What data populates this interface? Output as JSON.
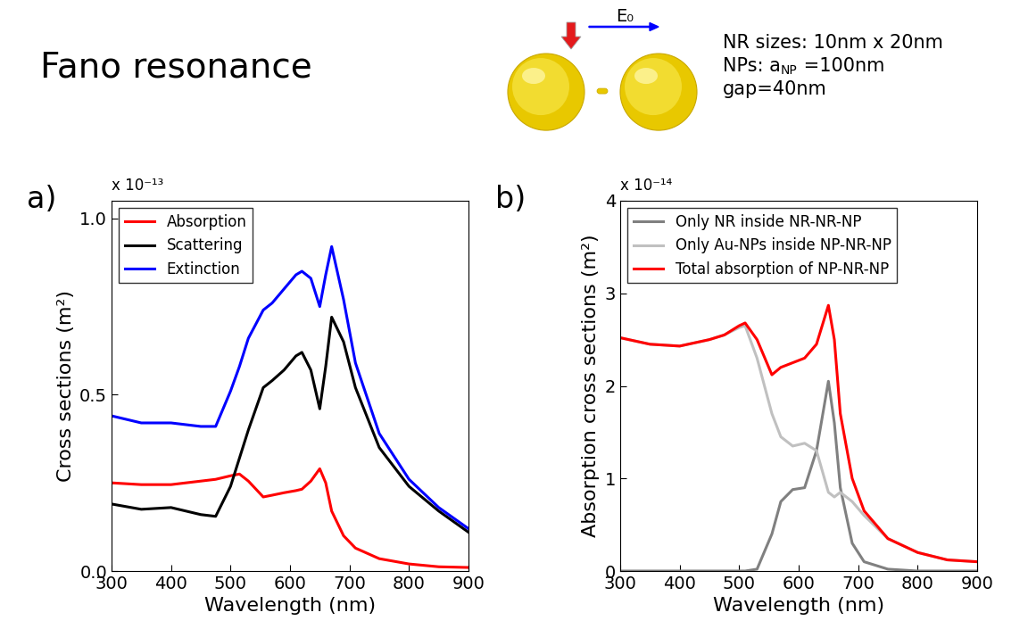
{
  "header": {
    "title": "Fano resonance",
    "field_label": "E₀",
    "notes": [
      [
        "NR sizes: 10nm x 20nm"
      ],
      [
        "NPs: a",
        {
          "sub": "NP"
        },
        " =100nm"
      ],
      [
        "gap=40nm"
      ]
    ]
  },
  "chart_data": [
    {
      "type": "line",
      "label": "a)",
      "y_multiplier": "x 10⁻¹³",
      "x_label": "Wavelength (nm)",
      "y_label": "Cross sections (m²)",
      "x": [
        300,
        350,
        400,
        450,
        475,
        500,
        515,
        530,
        555,
        570,
        590,
        610,
        620,
        635,
        650,
        660,
        670,
        690,
        710,
        750,
        800,
        850,
        900
      ],
      "series": [
        {
          "name": "Absorption",
          "color": "#ff0000",
          "values": [
            0.25,
            0.245,
            0.245,
            0.255,
            0.26,
            0.27,
            0.275,
            0.255,
            0.21,
            0.215,
            0.222,
            0.228,
            0.232,
            0.255,
            0.29,
            0.25,
            0.17,
            0.1,
            0.065,
            0.035,
            0.02,
            0.012,
            0.01
          ]
        },
        {
          "name": "Scattering",
          "color": "#000000",
          "values": [
            0.19,
            0.175,
            0.18,
            0.16,
            0.155,
            0.24,
            0.32,
            0.4,
            0.52,
            0.54,
            0.57,
            0.61,
            0.62,
            0.57,
            0.46,
            0.58,
            0.72,
            0.65,
            0.52,
            0.35,
            0.24,
            0.17,
            0.11
          ]
        },
        {
          "name": "Extinction",
          "color": "#0000ff",
          "values": [
            0.44,
            0.42,
            0.42,
            0.41,
            0.41,
            0.51,
            0.58,
            0.66,
            0.74,
            0.76,
            0.8,
            0.84,
            0.85,
            0.83,
            0.75,
            0.84,
            0.92,
            0.77,
            0.59,
            0.39,
            0.26,
            0.18,
            0.12
          ]
        }
      ],
      "xlim": [
        300,
        900
      ],
      "xticks": [
        300,
        400,
        500,
        600,
        700,
        800,
        900
      ],
      "ylim": [
        0,
        1.05
      ],
      "yticks": [
        {
          "value": 0,
          "label": "0.0"
        },
        {
          "value": 0.5,
          "label": "0.5"
        },
        {
          "value": 1,
          "label": "1.0"
        }
      ],
      "legend": "upper left"
    },
    {
      "type": "line",
      "label": "b)",
      "y_multiplier": "x 10⁻¹⁴",
      "x_label": "Wavelength (nm)",
      "y_label": "Absorption cross sections (m²)",
      "x": [
        300,
        350,
        400,
        450,
        475,
        500,
        510,
        530,
        555,
        570,
        590,
        610,
        630,
        650,
        660,
        670,
        690,
        710,
        750,
        800,
        850,
        900
      ],
      "series": [
        {
          "name": "Only NR inside NR-NR-NP",
          "color": "#808080",
          "values": [
            0,
            0,
            0,
            0,
            0,
            0,
            0,
            0.02,
            0.4,
            0.75,
            0.88,
            0.9,
            1.3,
            2.05,
            1.6,
            0.9,
            0.3,
            0.1,
            0.02,
            0,
            0,
            0
          ]
        },
        {
          "name": "Only Au-NPs inside NP-NR-NP",
          "color": "#c0c0c0",
          "values": [
            2.52,
            2.45,
            2.43,
            2.5,
            2.55,
            2.63,
            2.65,
            2.3,
            1.7,
            1.45,
            1.35,
            1.38,
            1.3,
            0.85,
            0.8,
            0.85,
            0.75,
            0.6,
            0.35,
            0.2,
            0.12,
            0.1
          ]
        },
        {
          "name": "Total absorption of NP-NR-NP",
          "color": "#ff0000",
          "values": [
            2.52,
            2.45,
            2.43,
            2.5,
            2.55,
            2.65,
            2.68,
            2.5,
            2.12,
            2.2,
            2.25,
            2.3,
            2.45,
            2.87,
            2.5,
            1.7,
            1.0,
            0.65,
            0.35,
            0.2,
            0.12,
            0.1
          ]
        }
      ],
      "xlim": [
        300,
        900
      ],
      "xticks": [
        300,
        400,
        500,
        600,
        700,
        800,
        900
      ],
      "ylim": [
        0,
        4
      ],
      "yticks": [
        0,
        1,
        2,
        3,
        4
      ],
      "legend": "upper left"
    }
  ]
}
